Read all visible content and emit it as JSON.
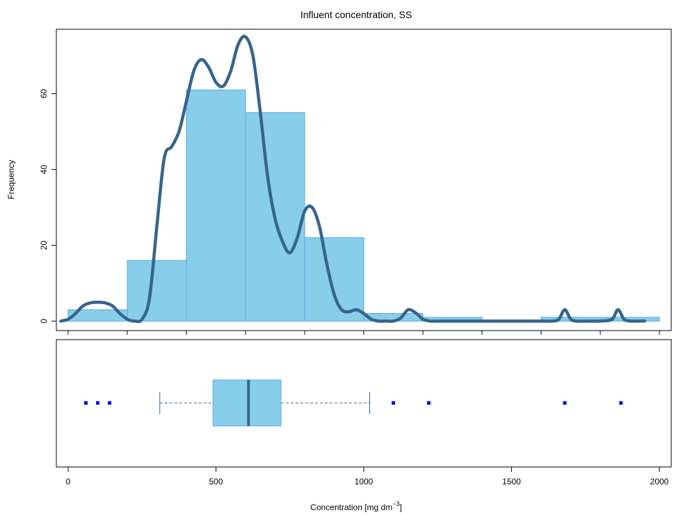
{
  "chart_data": {
    "type": "histogram",
    "title": "Influent concentration, SS",
    "xlabel_main": "Concentration [mg dm",
    "xlabel_sup": "−3",
    "xlabel_close": "]",
    "ylabel": "Frequency",
    "xlim": [
      -40,
      2040
    ],
    "ylim": [
      -2.5,
      77
    ],
    "x_ticks": [
      0,
      500,
      1000,
      1500,
      2000
    ],
    "x_minor_ticks": [
      0,
      200,
      400,
      600,
      800,
      1000,
      1200,
      1400,
      1600,
      1800,
      2000
    ],
    "y_ticks": [
      0,
      20,
      40,
      60
    ],
    "histogram": {
      "bin_edges": [
        0,
        200,
        400,
        600,
        800,
        1000,
        1200,
        1400,
        1600,
        1800,
        2000
      ],
      "counts": [
        3,
        16,
        61,
        55,
        22,
        2,
        1,
        0,
        1,
        1
      ]
    },
    "density_curve": {
      "x": [
        -25,
        0,
        25,
        50,
        75,
        100,
        125,
        150,
        175,
        200,
        225,
        250,
        275,
        300,
        325,
        350,
        375,
        400,
        425,
        450,
        475,
        500,
        525,
        550,
        575,
        600,
        625,
        650,
        675,
        700,
        725,
        750,
        775,
        800,
        825,
        850,
        875,
        900,
        925,
        950,
        975,
        1000,
        1025,
        1050,
        1075,
        1100,
        1125,
        1150,
        1175,
        1200,
        1225,
        1250,
        1275,
        1300,
        1400,
        1500,
        1600,
        1640,
        1660,
        1680,
        1700,
        1720,
        1760,
        1800,
        1840,
        1860,
        1880,
        1900,
        1920,
        1950
      ],
      "y": [
        0,
        0.5,
        2,
        4,
        4.8,
        5,
        4.8,
        4,
        2,
        0.5,
        0,
        0.5,
        6,
        25,
        43,
        46,
        50,
        58,
        66,
        69,
        67,
        63,
        62,
        66,
        73,
        75,
        70,
        55,
        38,
        27,
        21,
        18,
        22,
        29,
        30,
        25,
        15,
        7,
        3,
        2.5,
        3,
        2,
        0.5,
        0,
        0,
        0,
        0.8,
        3,
        2.2,
        0.5,
        0,
        0,
        0,
        0,
        0,
        0,
        0,
        0,
        0.5,
        3,
        0.5,
        0,
        0,
        0,
        0.5,
        3,
        0.5,
        0,
        0,
        0
      ]
    },
    "boxplot": {
      "lower_whisker": 310,
      "q1": 490,
      "median": 610,
      "q3": 720,
      "upper_whisker": 1020,
      "outliers": [
        60,
        100,
        140,
        1100,
        1220,
        1680,
        1870
      ]
    },
    "colors": {
      "bar_fill": "#87CEEB",
      "bar_stroke": "#5AA5E0",
      "curve": "#36648B",
      "box_fill": "#87CEEB",
      "box_stroke": "#5AA5E0",
      "median": "#36648B",
      "whisker": "#36648B",
      "outlier": "#0000FF"
    }
  }
}
